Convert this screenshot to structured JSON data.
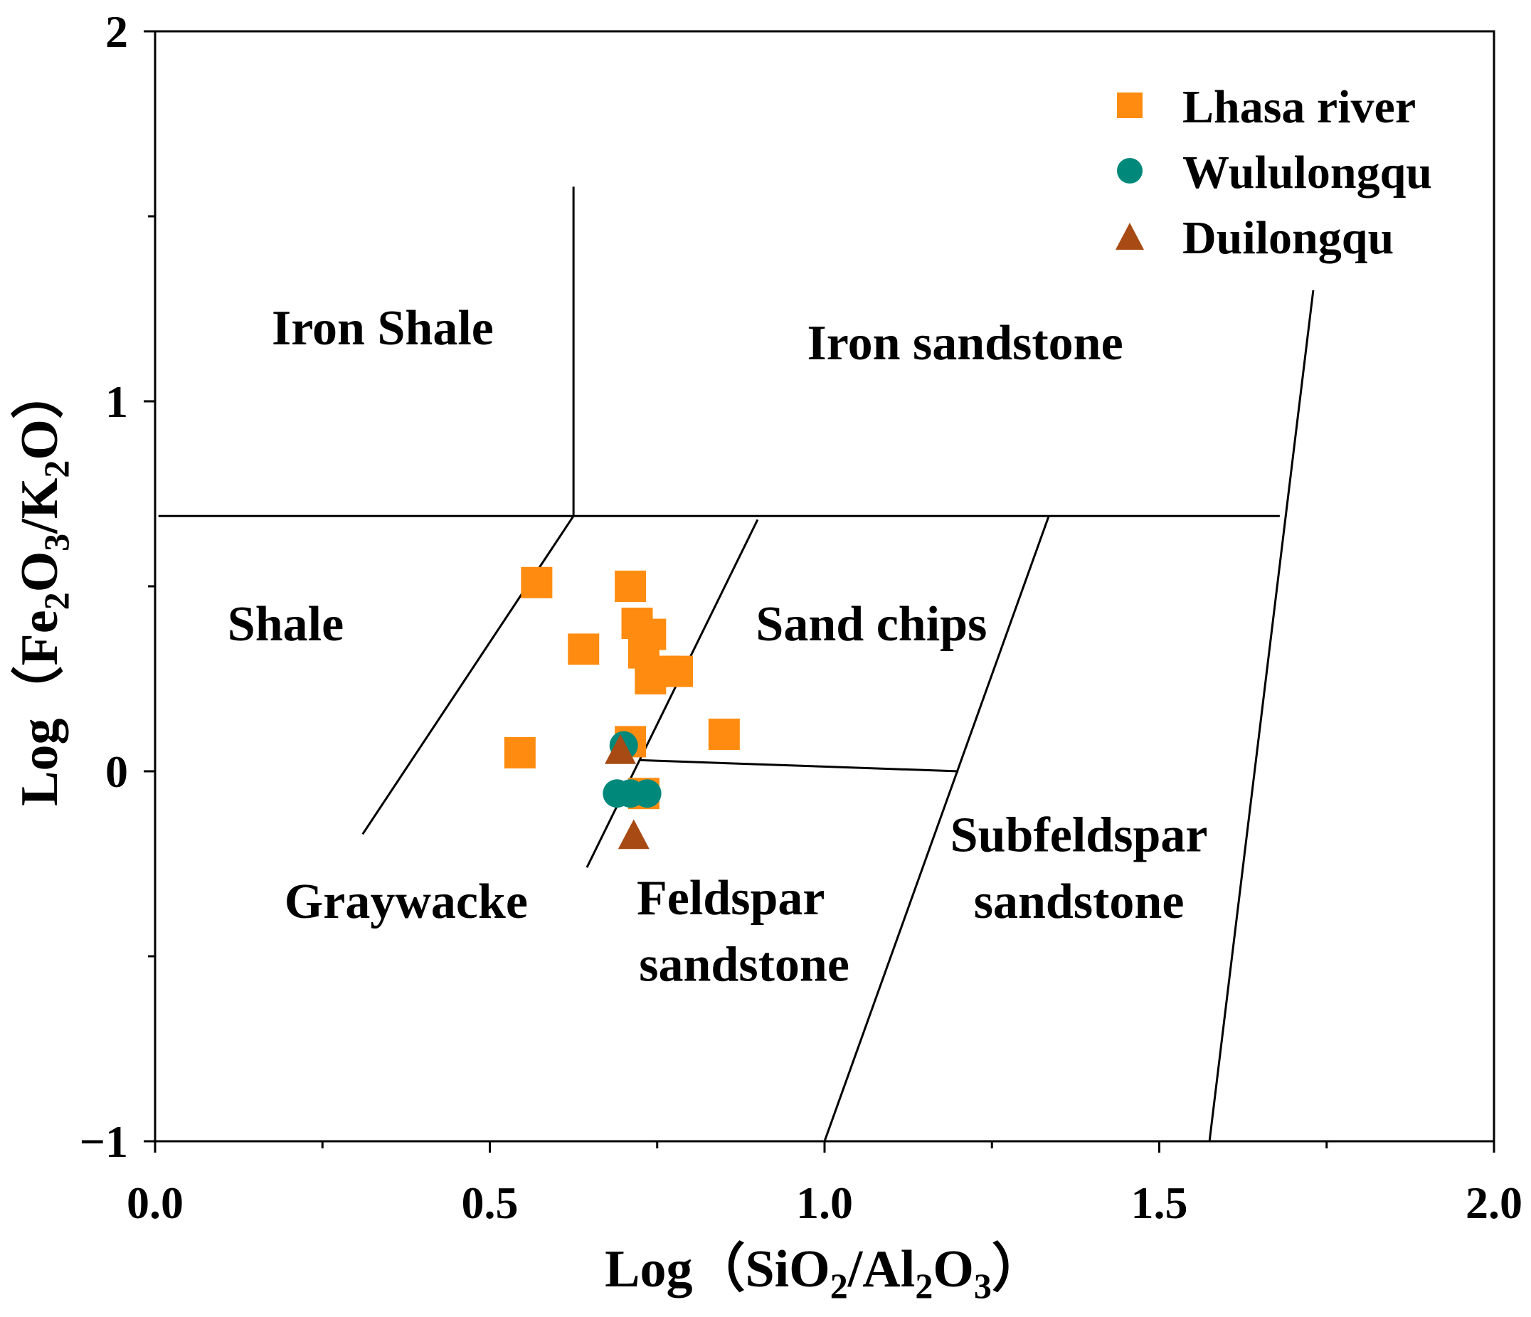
{
  "chart_data": {
    "type": "scatter",
    "xlabel": {
      "prefix": "Log（SiO",
      "sub1": "2",
      "mid": "/Al",
      "sub2": "2",
      "mid2": "O",
      "sub3": "3",
      "suffix": "）"
    },
    "ylabel": {
      "prefix": "Log（Fe",
      "sub1": "2",
      "mid": "O",
      "sub2": "3",
      "mid2": "/K",
      "sub3": "2",
      "suffix": "O）"
    },
    "xlim": [
      0.0,
      2.0
    ],
    "ylim": [
      -1,
      2
    ],
    "xticks": [
      "0.0",
      "0.5",
      "1.0",
      "1.5",
      "2.0"
    ],
    "yticks": [
      "−1",
      "0",
      "1",
      "2"
    ],
    "xtick_values": [
      0.0,
      0.5,
      1.0,
      1.5,
      2.0
    ],
    "ytick_values": [
      -1,
      0,
      1,
      2
    ],
    "grid": false,
    "legend_position": "top-right",
    "series": [
      {
        "name": "Lhasa river",
        "marker": "square",
        "color": "#FF8C10",
        "points": [
          [
            0.57,
            0.51
          ],
          [
            0.71,
            0.5
          ],
          [
            0.64,
            0.33
          ],
          [
            0.72,
            0.4
          ],
          [
            0.74,
            0.37
          ],
          [
            0.73,
            0.32
          ],
          [
            0.76,
            0.27
          ],
          [
            0.78,
            0.27
          ],
          [
            0.74,
            0.25
          ],
          [
            0.85,
            0.1
          ],
          [
            0.545,
            0.05
          ],
          [
            0.71,
            0.08
          ],
          [
            0.73,
            -0.06
          ]
        ]
      },
      {
        "name": "Wululongqu",
        "marker": "circle",
        "color": "#00897B",
        "points": [
          [
            0.7,
            0.07
          ],
          [
            0.69,
            -0.06
          ],
          [
            0.71,
            -0.06
          ],
          [
            0.735,
            -0.06
          ]
        ]
      },
      {
        "name": "Duilongqu",
        "marker": "triangle",
        "color": "#A84A14",
        "points": [
          [
            0.695,
            0.06
          ],
          [
            0.715,
            -0.17
          ]
        ]
      }
    ],
    "boundary_lines": [
      [
        [
          0.625,
          1.58
        ],
        [
          0.625,
          0.69
        ]
      ],
      [
        [
          0.005,
          0.69
        ],
        [
          1.68,
          0.69
        ]
      ],
      [
        [
          0.625,
          0.69
        ],
        [
          0.31,
          -0.17
        ]
      ],
      [
        [
          0.9,
          0.68
        ],
        [
          0.645,
          -0.26
        ]
      ],
      [
        [
          0.725,
          0.03
        ],
        [
          1.2,
          0.0
        ]
      ],
      [
        [
          1.335,
          0.69
        ],
        [
          1.0,
          -1.0
        ]
      ],
      [
        [
          1.73,
          1.3
        ],
        [
          1.575,
          -1.0
        ]
      ]
    ],
    "regions": [
      {
        "label": "Iron Shale",
        "x": 0.34,
        "y": 1.2
      },
      {
        "label": "Iron sandstone",
        "x": 1.21,
        "y": 1.16
      },
      {
        "label": "Shale",
        "x": 0.195,
        "y": 0.4
      },
      {
        "label": "Sand chips",
        "x": 1.07,
        "y": 0.4
      },
      {
        "label": "Graywacke",
        "x": 0.375,
        "y": -0.35
      },
      {
        "label": "Feldspar",
        "x": 0.86,
        "y": -0.34
      },
      {
        "label": "sandstone",
        "x": 0.88,
        "y": -0.52
      },
      {
        "label": "Subfeldspar",
        "x": 1.38,
        "y": -0.17
      },
      {
        "label": "sandstone",
        "x": 1.38,
        "y": -0.35
      }
    ]
  }
}
